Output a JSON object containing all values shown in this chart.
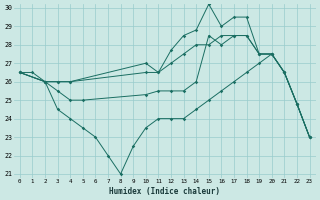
{
  "xlabel": "Humidex (Indice chaleur)",
  "bg_color": "#cce8e4",
  "grid_color": "#99cccc",
  "line_color": "#1a6e62",
  "xlim": [
    -0.5,
    23.5
  ],
  "ylim": [
    20.8,
    30.2
  ],
  "xticks": [
    0,
    1,
    2,
    3,
    4,
    5,
    6,
    7,
    8,
    9,
    10,
    11,
    12,
    13,
    14,
    15,
    16,
    17,
    18,
    19,
    20,
    21,
    22,
    23
  ],
  "yticks": [
    21,
    22,
    23,
    24,
    25,
    26,
    27,
    28,
    29,
    30
  ],
  "series": [
    {
      "x": [
        0,
        1,
        2,
        3,
        4,
        10,
        11,
        12,
        13,
        14,
        15,
        16,
        17,
        18,
        19,
        20,
        21,
        22,
        23
      ],
      "y": [
        26.5,
        26.5,
        26.0,
        26.0,
        26.0,
        26.5,
        26.5,
        27.0,
        27.5,
        28.0,
        28.0,
        28.5,
        28.5,
        28.5,
        27.5,
        27.5,
        26.5,
        24.8,
        23.0
      ]
    },
    {
      "x": [
        0,
        2,
        3,
        4,
        10,
        11,
        12,
        13,
        14,
        15,
        16,
        17,
        18,
        19,
        20,
        21,
        22,
        23
      ],
      "y": [
        26.5,
        26.0,
        26.0,
        26.0,
        27.0,
        26.5,
        27.7,
        28.5,
        28.8,
        30.2,
        29.0,
        29.5,
        29.5,
        27.5,
        27.5,
        26.5,
        24.8,
        23.0
      ]
    },
    {
      "x": [
        0,
        2,
        3,
        4,
        5,
        10,
        11,
        12,
        13,
        14,
        15,
        16,
        17,
        18,
        19,
        20,
        21,
        22,
        23
      ],
      "y": [
        26.5,
        26.0,
        25.5,
        25.0,
        25.0,
        25.3,
        25.5,
        25.5,
        25.5,
        26.0,
        28.5,
        28.0,
        28.5,
        28.5,
        27.5,
        27.5,
        26.5,
        24.8,
        23.0
      ]
    },
    {
      "x": [
        0,
        2,
        3,
        4,
        5,
        6,
        7,
        8,
        9,
        10,
        11,
        12,
        13,
        14,
        15,
        16,
        17,
        18,
        19,
        20,
        21,
        22,
        23
      ],
      "y": [
        26.5,
        26.0,
        24.5,
        24.0,
        23.5,
        23.0,
        22.0,
        21.0,
        22.5,
        23.5,
        24.0,
        24.0,
        24.0,
        24.5,
        25.0,
        25.5,
        26.0,
        26.5,
        27.0,
        27.5,
        26.5,
        24.8,
        23.0
      ]
    }
  ]
}
